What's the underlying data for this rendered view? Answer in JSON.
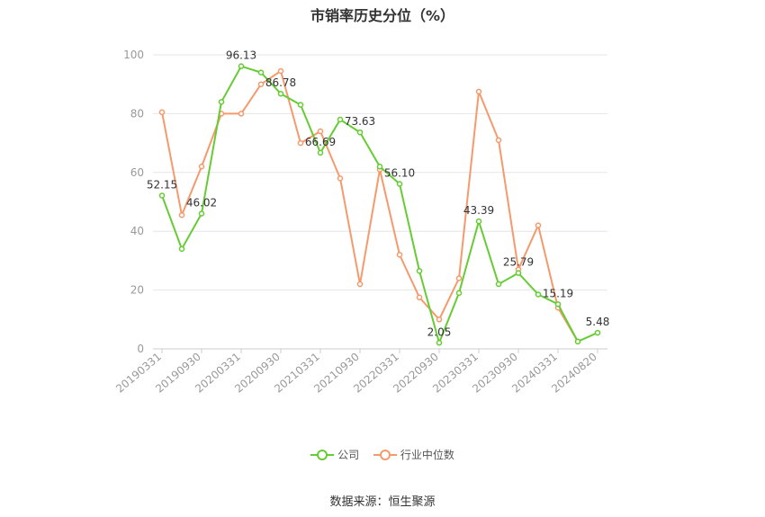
{
  "title": "市销率历史分位（%）",
  "source": "数据来源：恒生聚源",
  "colors": {
    "company": "#66cc33",
    "industry": "#f59a6d",
    "grid": "#e6e6ea",
    "axis": "#999999"
  },
  "chart_data": {
    "type": "line",
    "title": "市销率历史分位（%）",
    "xlabel": "",
    "ylabel": "",
    "ylim": [
      0,
      100
    ],
    "yticks": [
      0,
      20,
      40,
      60,
      80,
      100
    ],
    "grid": true,
    "legend_position": "bottom",
    "x_tick_labels": [
      "20190331",
      "20190930",
      "20200331",
      "20200930",
      "20210331",
      "20210930",
      "20220331",
      "20220930",
      "20230331",
      "20230930",
      "20240331",
      "20240820"
    ],
    "x": [
      "20190331",
      "20190630",
      "20190930",
      "20191231",
      "20200331",
      "20200630",
      "20200930",
      "20201231",
      "20210331",
      "20210630",
      "20210930",
      "20211231",
      "20220331",
      "20220630",
      "20220930",
      "20221231",
      "20230331",
      "20230630",
      "20230930",
      "20231231",
      "20240331",
      "20240630",
      "20240820"
    ],
    "series": [
      {
        "name": "公司",
        "values": [
          52.15,
          34.0,
          46.02,
          84.0,
          96.13,
          94.0,
          86.78,
          83.0,
          66.69,
          78.0,
          73.63,
          62.0,
          56.1,
          26.5,
          2.05,
          19.0,
          43.39,
          22.0,
          25.79,
          18.5,
          15.19,
          2.5,
          5.48
        ],
        "labels": [
          "52.15",
          null,
          "46.02",
          null,
          "96.13",
          null,
          "86.78",
          null,
          "66.69",
          null,
          "73.63",
          null,
          "56.10",
          null,
          "2.05",
          null,
          "43.39",
          null,
          "25.79",
          null,
          "15.19",
          null,
          "5.48"
        ]
      },
      {
        "name": "行业中位数",
        "values": [
          80.5,
          45.5,
          62.0,
          80.0,
          80.0,
          90.0,
          94.5,
          70.0,
          74.0,
          58.0,
          22.0,
          61.0,
          32.0,
          17.5,
          10.0,
          24.0,
          87.5,
          71.0,
          27.0,
          42.0,
          14.0,
          2.5,
          null
        ]
      }
    ]
  }
}
